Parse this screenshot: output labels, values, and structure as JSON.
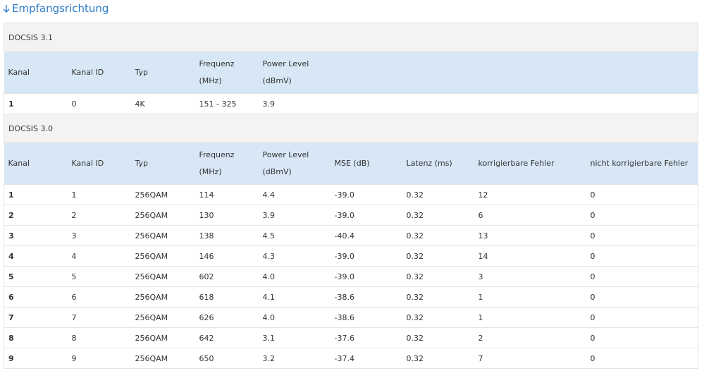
{
  "header": {
    "title": "Empfangsrichtung"
  },
  "sections": [
    {
      "title": "DOCSIS 3.1",
      "columns": [
        "Kanal",
        "Kanal ID",
        "Typ",
        "Frequenz (MHz)",
        "Power Level (dBmV)"
      ],
      "rows": [
        [
          "1",
          "0",
          "4K",
          "151 - 325",
          "3.9"
        ]
      ]
    },
    {
      "title": "DOCSIS 3.0",
      "columns": [
        "Kanal",
        "Kanal ID",
        "Typ",
        "Frequenz (MHz)",
        "Power Level (dBmV)",
        "MSE (dB)",
        "Latenz (ms)",
        "korrigierbare Fehler",
        "nicht korrigierbare Fehler"
      ],
      "rows": [
        [
          "1",
          "1",
          "256QAM",
          "114",
          "4.4",
          "-39.0",
          "0.32",
          "12",
          "0"
        ],
        [
          "2",
          "2",
          "256QAM",
          "130",
          "3.9",
          "-39.0",
          "0.32",
          "6",
          "0"
        ],
        [
          "3",
          "3",
          "256QAM",
          "138",
          "4.5",
          "-40.4",
          "0.32",
          "13",
          "0"
        ],
        [
          "4",
          "4",
          "256QAM",
          "146",
          "4.3",
          "-39.0",
          "0.32",
          "14",
          "0"
        ],
        [
          "5",
          "5",
          "256QAM",
          "602",
          "4.0",
          "-39.0",
          "0.32",
          "3",
          "0"
        ],
        [
          "6",
          "6",
          "256QAM",
          "618",
          "4.1",
          "-38.6",
          "0.32",
          "1",
          "0"
        ],
        [
          "7",
          "7",
          "256QAM",
          "626",
          "4.0",
          "-38.6",
          "0.32",
          "1",
          "0"
        ],
        [
          "8",
          "8",
          "256QAM",
          "642",
          "3.1",
          "-37.6",
          "0.32",
          "2",
          "0"
        ],
        [
          "9",
          "9",
          "256QAM",
          "650",
          "3.2",
          "-37.4",
          "0.32",
          "7",
          "0"
        ]
      ]
    }
  ]
}
